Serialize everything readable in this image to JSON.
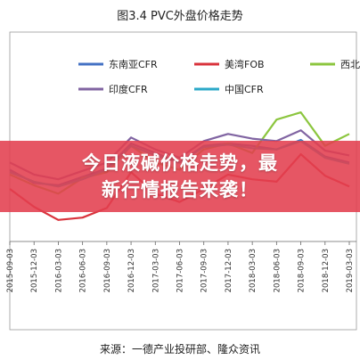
{
  "figure_title": "图3.4 PVC外盘价格走势",
  "source_text": "来源：一德产业投研部、隆众资讯",
  "overlay": {
    "line1": "今日液碱价格走势，最",
    "line2": "新行情报告来袭！"
  },
  "colors": {
    "dongnanya": "#4472c4",
    "meiwan": "#d9333c",
    "xibei": "#8cc63f",
    "yindu": "#8064a2",
    "zhongguo": "#2ba8c8",
    "banner": "#e23f4f"
  },
  "chart_data": {
    "type": "line",
    "title": "",
    "x": [
      "2015-09-03",
      "2015-12-03",
      "2016-03-03",
      "2016-06-03",
      "2016-09-03",
      "2016-12-03",
      "2017-03-03",
      "2017-06-03",
      "2017-09-03",
      "2017-12-03",
      "2018-03-03",
      "2018-06-03",
      "2018-09-03",
      "2018-12-03",
      "2019-03-03"
    ],
    "ylim": [
      600,
      1200
    ],
    "grid": false,
    "legend_position": "top",
    "series": [
      {
        "name": "东南亚CFR",
        "color": "#4472c4",
        "values": [
          900,
          845,
          835,
          870,
          905,
          1010,
          970,
          930,
          1000,
          1010,
          1000,
          985,
          1025,
          955,
          930
        ]
      },
      {
        "name": "美湾FOB",
        "color": "#d9333c",
        "values": [
          820,
          745,
          690,
          700,
          740,
          890,
          800,
          765,
          820,
          880,
          860,
          850,
          965,
          875,
          830
        ]
      },
      {
        "name": "西北",
        "color": "#8cc63f",
        "values": [
          880,
          835,
          800,
          865,
          890,
          1000,
          930,
          900,
          985,
          1010,
          970,
          1110,
          1140,
          1000,
          1050
        ]
      },
      {
        "name": "印度CFR",
        "color": "#8064a2",
        "values": [
          930,
          880,
          860,
          895,
          930,
          1035,
          985,
          950,
          1020,
          1050,
          1030,
          1020,
          1065,
          980,
          960
        ]
      },
      {
        "name": "中国CFR",
        "color": "#2ba8c8",
        "values": [
          890,
          850,
          830,
          860,
          900,
          1000,
          960,
          930,
          995,
          1005,
          990,
          985,
          1020,
          950,
          925
        ]
      }
    ]
  }
}
